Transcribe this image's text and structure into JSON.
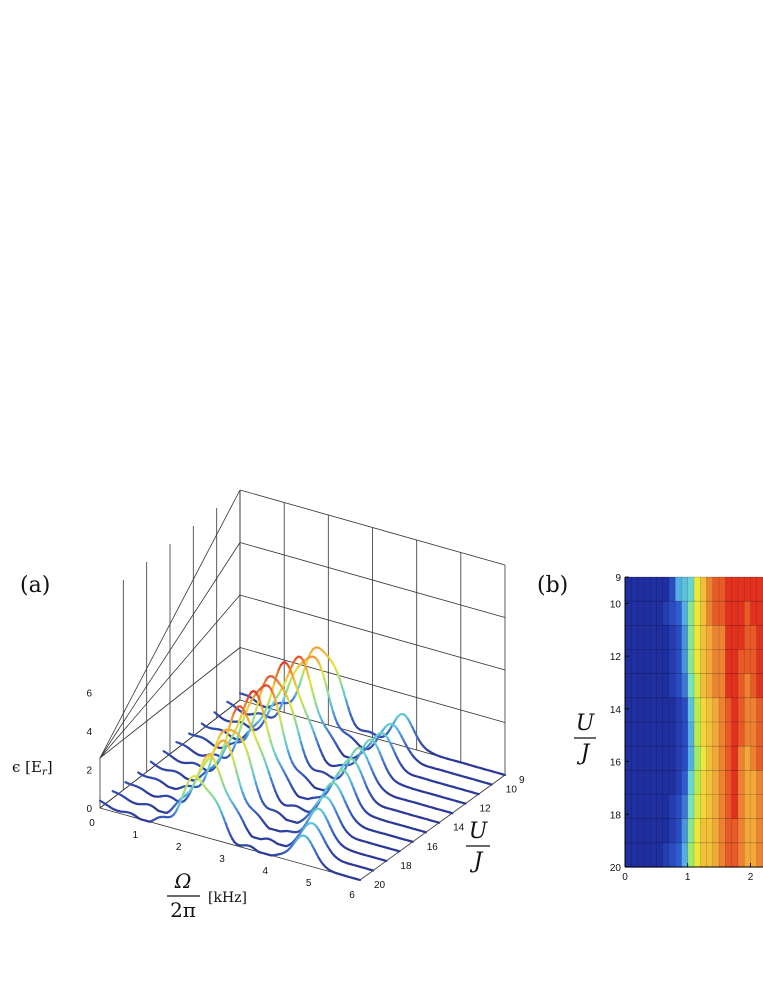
{
  "chart_data": [
    {
      "type": "line",
      "panel_label": "(a)",
      "x_label_numerator": "Ω",
      "x_label_denominator": "2π",
      "x_label_unit": "[kHz]",
      "z_label": "ϵ  [E",
      "z_label_sub": "r",
      "z_label_close": "]",
      "y_label_numerator": "U",
      "y_label_denominator": "J",
      "x_ticks": [
        "0",
        "1",
        "2",
        "3",
        "4",
        "5",
        "6"
      ],
      "y_ticks": [
        "9",
        "10",
        "12",
        "14",
        "16",
        "18",
        "20"
      ],
      "z_ticks": [
        "0",
        "2",
        "4",
        "6"
      ],
      "xlim": [
        0,
        6
      ],
      "ylim": [
        9,
        20
      ],
      "zlim": [
        0,
        6
      ],
      "series_u": [
        9,
        10,
        11,
        12,
        13,
        14,
        15,
        16,
        17,
        18,
        19,
        20
      ],
      "peak_center_khz": [
        1.85,
        1.87,
        1.9,
        1.93,
        1.96,
        2.0,
        2.05,
        2.1,
        2.15,
        2.2,
        2.25,
        2.3
      ],
      "peak_height": [
        4.0,
        4.1,
        4.3,
        4.5,
        4.6,
        4.7,
        4.6,
        4.4,
        4.1,
        3.8,
        3.4,
        3.0
      ],
      "secondary_peak_khz": [
        3.7,
        3.75,
        3.8,
        3.85,
        3.9,
        4.0,
        4.1,
        4.2,
        4.3,
        4.45,
        4.6,
        4.7
      ],
      "secondary_peak_height": [
        1.6,
        1.7,
        1.8,
        1.9,
        2.0,
        2.1,
        2.0,
        1.9,
        1.8,
        1.7,
        1.6,
        1.5
      ],
      "colorscale": [
        "#2b3a9a",
        "#3f6fd0",
        "#5fc8e0",
        "#9fe07a",
        "#e8e43a",
        "#f2a13a",
        "#e03a2a"
      ]
    },
    {
      "type": "heatmap",
      "panel_label": "(b)",
      "y_label_numerator": "U",
      "y_label_denominator": "J",
      "x_ticks": [
        "0",
        "1",
        "2"
      ],
      "y_ticks": [
        "9",
        "10",
        "12",
        "14",
        "16",
        "18",
        "20"
      ],
      "xlim": [
        0,
        2.2
      ],
      "ylim": [
        9,
        20
      ],
      "rows_u": [
        9,
        10,
        11,
        12,
        13,
        14,
        15,
        16,
        17,
        18,
        19,
        20
      ],
      "x_bin_width_khz": 0.1,
      "values": [
        [
          0,
          0,
          0,
          0,
          0,
          0,
          0,
          0.1,
          0.3,
          0.35,
          0.4,
          0.7,
          0.8,
          0.9,
          0.95,
          0.95,
          1,
          1,
          1,
          1,
          1,
          1
        ],
        [
          0,
          0,
          0,
          0,
          0,
          0,
          0.05,
          0.1,
          0.15,
          0.3,
          0.5,
          0.7,
          0.8,
          0.9,
          0.95,
          0.95,
          1,
          1,
          1,
          0.95,
          1,
          1
        ],
        [
          0,
          0,
          0,
          0,
          0,
          0,
          0,
          0.05,
          0.1,
          0.25,
          0.5,
          0.7,
          0.8,
          0.85,
          0.9,
          0.9,
          1,
          1,
          1,
          0.95,
          0.95,
          1
        ],
        [
          0,
          0,
          0,
          0,
          0,
          0,
          0,
          0.05,
          0.1,
          0.25,
          0.5,
          0.7,
          0.8,
          0.85,
          0.9,
          0.9,
          1,
          1,
          0.95,
          0.95,
          0.95,
          1
        ],
        [
          0,
          0,
          0,
          0,
          0,
          0,
          0,
          0.05,
          0.1,
          0.2,
          0.45,
          0.65,
          0.8,
          0.85,
          0.9,
          0.9,
          1,
          1,
          0.95,
          0.9,
          0.95,
          1
        ],
        [
          0,
          0,
          0,
          0,
          0,
          0,
          0,
          0,
          0.05,
          0.1,
          0.35,
          0.6,
          0.75,
          0.8,
          0.85,
          0.9,
          0.95,
          1,
          0.95,
          0.9,
          0.9,
          0.95
        ],
        [
          0,
          0,
          0,
          0,
          0,
          0,
          0,
          0,
          0.05,
          0.1,
          0.3,
          0.6,
          0.75,
          0.8,
          0.85,
          0.9,
          0.95,
          1,
          0.95,
          0.9,
          0.9,
          0.95
        ],
        [
          0,
          0,
          0,
          0,
          0,
          0,
          0,
          0,
          0.05,
          0.1,
          0.3,
          0.55,
          0.7,
          0.8,
          0.85,
          0.9,
          0.95,
          1,
          0.9,
          0.85,
          0.9,
          0.95
        ],
        [
          0,
          0,
          0,
          0,
          0,
          0,
          0,
          0,
          0.05,
          0.15,
          0.4,
          0.6,
          0.75,
          0.8,
          0.85,
          0.9,
          0.95,
          1,
          0.9,
          0.85,
          0.85,
          0.9
        ],
        [
          0,
          0,
          0,
          0,
          0,
          0,
          0,
          0.05,
          0.1,
          0.2,
          0.45,
          0.65,
          0.75,
          0.8,
          0.85,
          0.9,
          0.95,
          1,
          0.9,
          0.85,
          0.85,
          0.9
        ],
        [
          0,
          0,
          0,
          0,
          0,
          0,
          0,
          0.05,
          0.1,
          0.25,
          0.5,
          0.7,
          0.8,
          0.8,
          0.85,
          0.9,
          0.95,
          0.95,
          0.9,
          0.85,
          0.85,
          0.9
        ],
        [
          0,
          0,
          0,
          0,
          0,
          0,
          0.05,
          0.1,
          0.15,
          0.3,
          0.55,
          0.7,
          0.8,
          0.8,
          0.85,
          0.9,
          0.95,
          0.95,
          0.9,
          0.85,
          0.85,
          0.9
        ]
      ],
      "colorscale": [
        "#1f2fa0",
        "#2f58d0",
        "#4fa8e6",
        "#6fe0c8",
        "#a8ec5a",
        "#f0e83a",
        "#f2a53a",
        "#e2321f"
      ]
    }
  ]
}
